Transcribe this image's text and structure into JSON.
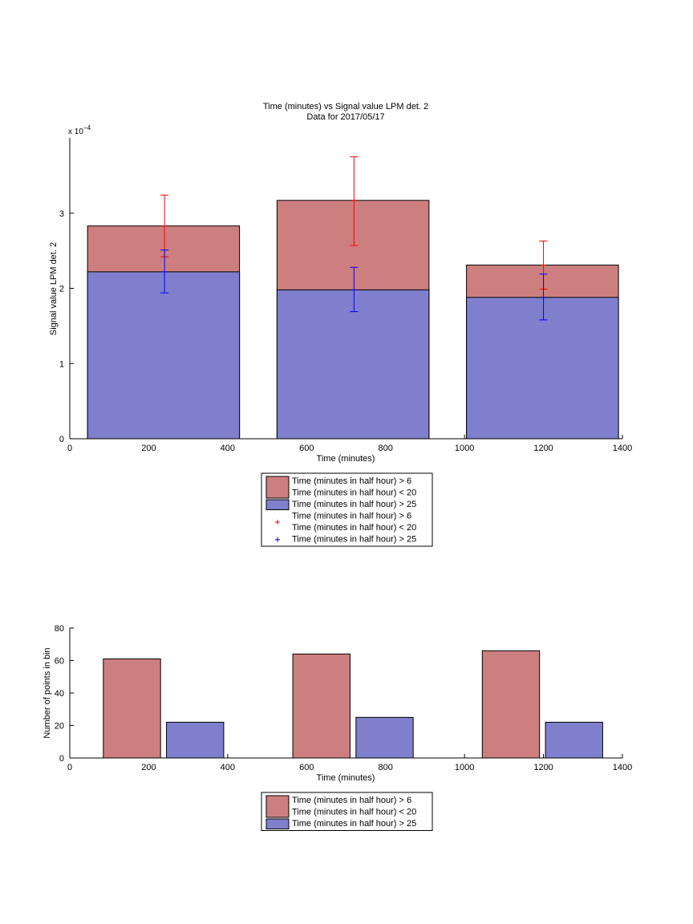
{
  "chart_data": [
    {
      "type": "bar",
      "title": "Time (minutes) vs Signal value LPM det. 2",
      "subtitle": "Data for 2017/05/17",
      "xlabel": "Time (minutes)",
      "ylabel": "Signal value LPM det. 2",
      "y_exponent_label": "x 10",
      "y_exponent_sup": "−4",
      "xlim": [
        0,
        1400
      ],
      "ylim": [
        0,
        4
      ],
      "xticks": [
        0,
        200,
        400,
        600,
        800,
        1000,
        1200,
        1400
      ],
      "yticks": [
        0,
        1,
        2,
        3
      ],
      "grid": false,
      "legend_placement": "below",
      "colors": {
        "red_bar": "#cd7f7f",
        "blue_bar": "#7f7fcd",
        "red_err": "#ff0000",
        "blue_err": "#0000ff"
      },
      "bars": [
        {
          "x_start": 45,
          "x_end": 430,
          "red_value": 2.83,
          "blue_value": 2.22
        },
        {
          "x_start": 525,
          "x_end": 910,
          "red_value": 3.17,
          "blue_value": 1.98
        },
        {
          "x_start": 1005,
          "x_end": 1390,
          "red_value": 2.31,
          "blue_value": 1.88
        }
      ],
      "errorbars": [
        {
          "series": "red",
          "x": 240,
          "center": 2.83,
          "low": 2.42,
          "high": 3.24
        },
        {
          "series": "red",
          "x": 720,
          "center": 3.17,
          "low": 2.57,
          "high": 3.75
        },
        {
          "series": "red",
          "x": 1200,
          "center": 2.31,
          "low": 1.99,
          "high": 2.63
        },
        {
          "series": "blue",
          "x": 240,
          "center": 2.22,
          "low": 1.94,
          "high": 2.51
        },
        {
          "series": "blue",
          "x": 720,
          "center": 1.98,
          "low": 1.69,
          "high": 2.28
        },
        {
          "series": "blue",
          "x": 1200,
          "center": 1.88,
          "low": 1.58,
          "high": 2.19
        }
      ],
      "legend": [
        {
          "marker": "patch-red",
          "lines": [
            "Time (minutes in half hour) > 6",
            "Time (minutes in half hour) < 20"
          ]
        },
        {
          "marker": "patch-blue",
          "lines": [
            "Time (minutes in half hour) > 25"
          ]
        },
        {
          "marker": "plus-red",
          "lines": [
            "Time (minutes in half hour) > 6",
            "Time (minutes in half hour) < 20"
          ]
        },
        {
          "marker": "plus-blue",
          "lines": [
            "Time (minutes in half hour) > 25"
          ]
        }
      ]
    },
    {
      "type": "bar",
      "xlabel": "Time (minutes)",
      "ylabel": "Number of points in bin",
      "xlim": [
        0,
        1400
      ],
      "ylim": [
        0,
        80
      ],
      "xticks": [
        0,
        200,
        400,
        600,
        800,
        1000,
        1200,
        1400
      ],
      "yticks": [
        0,
        20,
        40,
        60,
        80
      ],
      "grid": false,
      "legend_placement": "below",
      "bars": [
        {
          "series": "red",
          "x_start": 85,
          "x_end": 230,
          "value": 61
        },
        {
          "series": "blue",
          "x_start": 245,
          "x_end": 390,
          "value": 22
        },
        {
          "series": "red",
          "x_start": 565,
          "x_end": 710,
          "value": 64
        },
        {
          "series": "blue",
          "x_start": 725,
          "x_end": 870,
          "value": 25
        },
        {
          "series": "red",
          "x_start": 1045,
          "x_end": 1190,
          "value": 66
        },
        {
          "series": "blue",
          "x_start": 1205,
          "x_end": 1350,
          "value": 22
        }
      ],
      "legend": [
        {
          "marker": "patch-red",
          "lines": [
            "Time (minutes in half hour) > 6",
            "Time (minutes in half hour) < 20"
          ]
        },
        {
          "marker": "patch-blue",
          "lines": [
            "Time (minutes in half hour) > 25"
          ]
        }
      ]
    }
  ]
}
